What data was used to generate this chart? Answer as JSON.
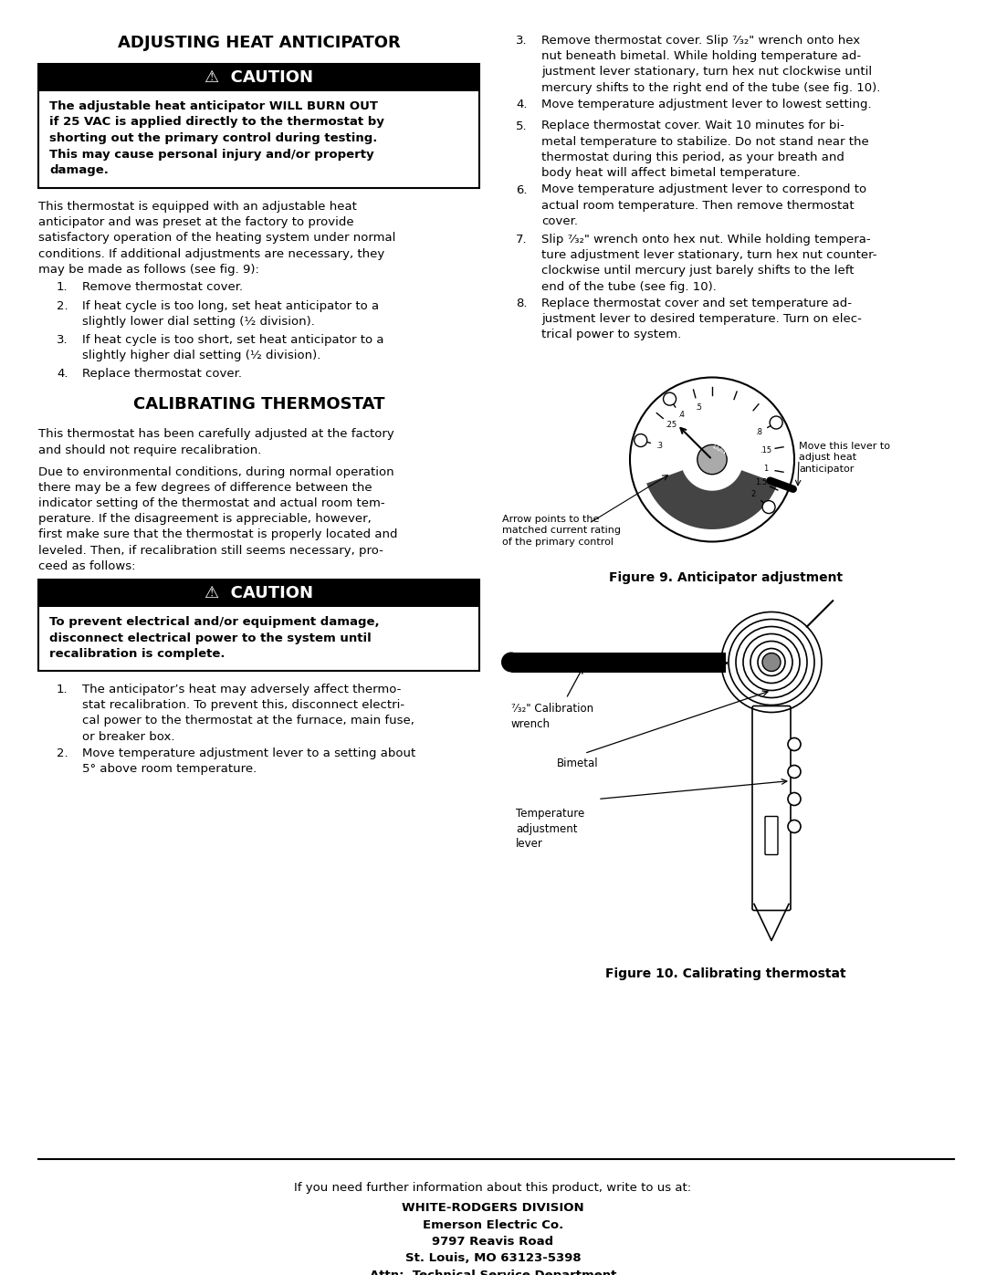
{
  "bg_color": "#ffffff",
  "title1": "ADJUSTING HEAT ANTICIPATOR",
  "caution1_title": "⚠  CAUTION",
  "caution1_body": "The adjustable heat anticipator WILL BURN OUT\nif 25 VAC is applied directly to the thermostat by\nshorting out the primary control during testing.\nThis may cause personal injury and/or property\ndamage.",
  "para1": "This thermostat is equipped with an adjustable heat\nanticipator and was preset at the factory to provide\nsatisfactory operation of the heating system under normal\nconditions. If additional adjustments are necessary, they\nmay be made as follows (see fig. 9):",
  "steps1": [
    "Remove thermostat cover.",
    "If heat cycle is too long, set heat anticipator to a\nslightly lower dial setting (½ division).",
    "If heat cycle is too short, set heat anticipator to a\nslightly higher dial setting (½ division).",
    "Replace thermostat cover."
  ],
  "title2": "CALIBRATING THERMOSTAT",
  "para2a": "This thermostat has been carefully adjusted at the factory\nand should not require recalibration.",
  "para2b": "Due to environmental conditions, during normal operation\nthere may be a few degrees of difference between the\nindicator setting of the thermostat and actual room tem-\nperature. If the disagreement is appreciable, however,\nfirst make sure that the thermostat is properly located and\nleveled. Then, if recalibration still seems necessary, pro-\nceed as follows:",
  "caution2_title": "⚠  CAUTION",
  "caution2_body": "To prevent electrical and/or equipment damage,\ndisconnect electrical power to the system until\nrecalibration is complete.",
  "steps2": [
    "The anticipator’s heat may adversely affect thermo-\nstat recalibration. To prevent this, disconnect electri-\ncal power to the thermostat at the furnace, main fuse,\nor breaker box.",
    "Move temperature adjustment lever to a setting about\n5° above room temperature."
  ],
  "right_steps": [
    "Remove thermostat cover. Slip ⁷⁄₃₂\" wrench onto hex\nnut beneath bimetal. While holding temperature ad-\njustment lever stationary, turn hex nut clockwise until\nmercury shifts to the right end of the tube (see fig. 10).",
    "Move temperature adjustment lever to lowest setting.",
    "Replace thermostat cover. Wait 10 minutes for bi-\nmetal temperature to stabilize. Do not stand near the\nthermostat during this period, as your breath and\nbody heat will affect bimetal temperature.",
    "Move temperature adjustment lever to correspond to\nactual room temperature. Then remove thermostat\ncover.",
    "Slip ⁷⁄₃₂\" wrench onto hex nut. While holding tempera-\nture adjustment lever stationary, turn hex nut counter-\nclockwise until mercury just barely shifts to the left\nend of the tube (see fig. 10).",
    "Replace thermostat cover and set temperature ad-\njustment lever to desired temperature. Turn on elec-\ntrical power to system."
  ],
  "fig9_caption": "Figure 9. Anticipator adjustment",
  "fig9_label_left": "Arrow points to the\nmatched current rating\nof the primary control",
  "fig9_label_right": "Move this lever to\nadjust heat\nanticipator",
  "fig10_caption": "Figure 10. Calibrating thermostat",
  "fig10_label_wrench": "⁷⁄₃₂\" Calibration\nwrench",
  "fig10_label_bimetal": "Bimetal",
  "fig10_label_lever": "Temperature\nadjustment\nlever",
  "footer_text": "If you need further information about this product, write to us at:",
  "footer_company": "WHITE-RODGERS DIVISION\nEmerson Electric Co.\n9797 Reavis Road\nSt. Louis, MO 63123-5398\nAttn:  Technical Service Department"
}
